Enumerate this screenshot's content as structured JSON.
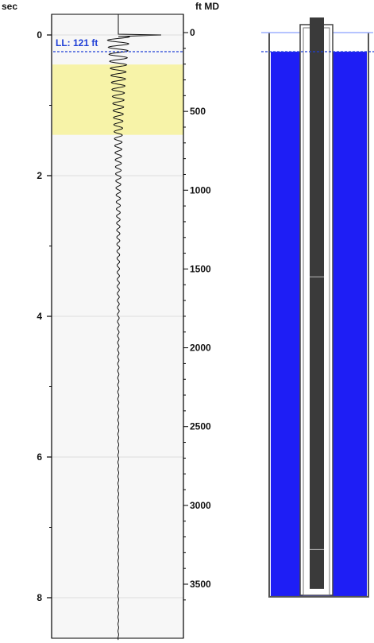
{
  "chart_data": {
    "type": "line",
    "title": "",
    "left_axis": {
      "unit": "sec",
      "range": [
        -0.35,
        8.6
      ],
      "tick_labels": [
        "0",
        "2",
        "4",
        "6",
        "8"
      ],
      "tick_values": [
        0,
        2,
        4,
        6,
        8
      ]
    },
    "right_axis": {
      "unit": "ft MD",
      "range": [
        -30,
        3700
      ],
      "tick_labels": [
        "0",
        "500",
        "1000",
        "1500",
        "2000",
        "2500",
        "3000",
        "3500"
      ],
      "tick_values": [
        0,
        500,
        1000,
        1500,
        2000,
        2500,
        3000,
        3500
      ]
    },
    "liquid_level": {
      "label": "LL: 121 ft",
      "value_ft": 121,
      "color": "#1f3fd6"
    },
    "highlight_band": {
      "from_sec": 0.42,
      "to_sec": 1.42,
      "color": "#f7f3a8"
    },
    "trace": {
      "center_sec": 0,
      "kick_time_sec": 0,
      "oscillation_period_sec": 0.1,
      "decay_constant_sec": 1.3,
      "end_sec": 8.6
    },
    "grid": true,
    "colors": {
      "plot_bg": "#f7f7f7",
      "gridline": "#dcdcdc",
      "trace": "#111111",
      "liquid": "#1e1ef5",
      "tubing": "#3a3a3a"
    }
  },
  "wellbore": {
    "casing_depth_ft": 3580,
    "tubing_depth_ft": 3570,
    "rod_joints_ft": [
      1550,
      3280
    ]
  }
}
